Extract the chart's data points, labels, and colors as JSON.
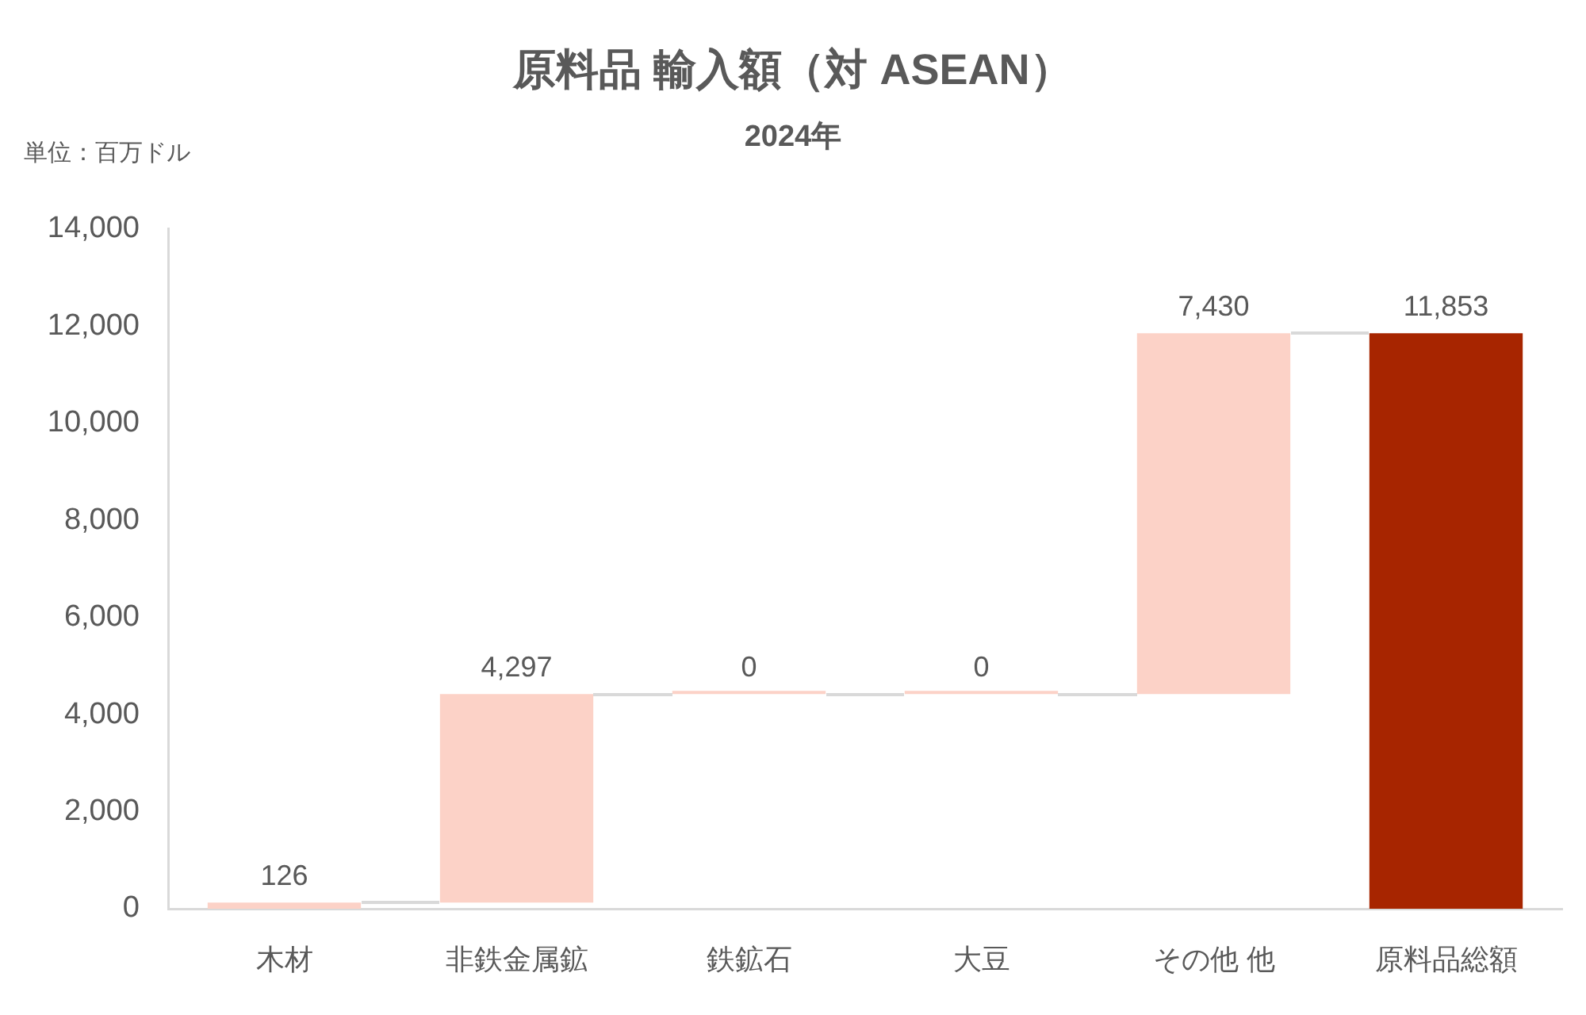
{
  "chart_data": {
    "type": "bar",
    "title": "原料品 輸入額（対 ASEAN）",
    "subtitle": "2024年",
    "annotations": [
      "単位：百万ドル"
    ],
    "categories": [
      "木材",
      "非鉄金属鉱",
      "鉄鉱石",
      "大豆",
      "その他 他",
      "原料品総額"
    ],
    "values": [
      126,
      4297,
      0,
      0,
      7430,
      11853
    ],
    "base": [
      0,
      126,
      4423,
      4423,
      4423,
      0
    ],
    "colors": [
      "#fcd2c7",
      "#fcd2c7",
      "#fcd2c7",
      "#fcd2c7",
      "#fcd2c7",
      "#a72500"
    ],
    "value_labels": [
      "126",
      "4,297",
      "0",
      "0",
      "7,430",
      "11,853"
    ],
    "ylim": [
      0,
      14000
    ],
    "yticks": [
      0,
      {
        "value": 2000,
        "label": "2,000"
      },
      {
        "value": 4000,
        "label": "4,000"
      },
      {
        "value": 6000,
        "label": "6,000"
      },
      {
        "value": 8000,
        "label": "8,000"
      },
      {
        "value": 10000,
        "label": "10,000"
      },
      {
        "value": 12000,
        "label": "12,000"
      },
      {
        "value": 14000,
        "label": "14,000"
      }
    ]
  }
}
